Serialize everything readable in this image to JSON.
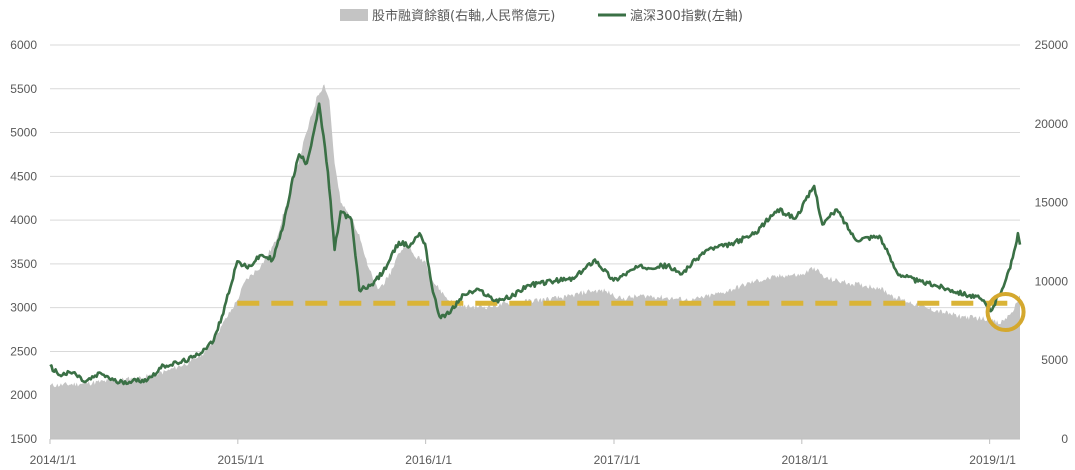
{
  "chart_data": {
    "type": "area+line",
    "legend": {
      "placement": "top",
      "items": [
        {
          "key": "margin",
          "label": "股市融資餘額(右軸,人民幣億元)",
          "color": "#c4c4c4",
          "marker": "rect"
        },
        {
          "key": "index",
          "label": "滬深300指數(左軸)",
          "color": "#3a7045",
          "marker": "line"
        }
      ]
    },
    "x_axis": {
      "min": "2014-01-01",
      "max": "2019-03-01",
      "tick_labels": [
        "2014/1/1",
        "2015/1/1",
        "2016/1/1",
        "2017/1/1",
        "2018/1/1",
        "2019/1/1"
      ],
      "tick_dates": [
        "2014-01-01",
        "2015-01-01",
        "2016-01-01",
        "2017-01-01",
        "2018-01-01",
        "2019-01-01"
      ]
    },
    "y_left": {
      "min": 1500,
      "max": 6000,
      "step": 500,
      "tick_labels": [
        "1500",
        "2000",
        "2500",
        "3000",
        "3500",
        "4000",
        "4500",
        "5000",
        "5500",
        "6000"
      ]
    },
    "y_right": {
      "min": 0,
      "max": 25000,
      "step": 5000,
      "tick_labels": [
        "0",
        "5000",
        "10000",
        "15000",
        "20000",
        "25000"
      ]
    },
    "grid": {
      "horizontal": true,
      "vertical": false,
      "color": "#d9d9d9"
    },
    "reference_line": {
      "axis": "left",
      "value": 3050,
      "from": "2014-12-31",
      "to": "2019-02-05",
      "color": "#dab437",
      "style": "dashed"
    },
    "highlight_circle": {
      "date": "2019-02-01",
      "value_left": 2950,
      "color": "#d4a82e"
    },
    "series": [
      {
        "key": "margin",
        "axis": "right",
        "render": "area",
        "color": "#c4c4c4",
        "points": [
          [
            "2014-01-01",
            3400
          ],
          [
            "2014-03-01",
            3500
          ],
          [
            "2014-05-01",
            3700
          ],
          [
            "2014-07-01",
            3900
          ],
          [
            "2014-08-15",
            4300
          ],
          [
            "2014-10-01",
            4900
          ],
          [
            "2014-11-01",
            5600
          ],
          [
            "2014-12-01",
            7200
          ],
          [
            "2014-12-31",
            8800
          ],
          [
            "2015-01-15",
            10000
          ],
          [
            "2015-02-15",
            11000
          ],
          [
            "2015-03-15",
            12500
          ],
          [
            "2015-04-15",
            16000
          ],
          [
            "2015-05-15",
            19500
          ],
          [
            "2015-06-05",
            21800
          ],
          [
            "2015-06-18",
            22500
          ],
          [
            "2015-06-28",
            21500
          ],
          [
            "2015-07-08",
            17500
          ],
          [
            "2015-07-20",
            15000
          ],
          [
            "2015-08-10",
            14000
          ],
          [
            "2015-08-25",
            13000
          ],
          [
            "2015-09-10",
            11000
          ],
          [
            "2015-09-30",
            9500
          ],
          [
            "2015-10-20",
            10200
          ],
          [
            "2015-11-10",
            11800
          ],
          [
            "2015-11-25",
            12400
          ],
          [
            "2015-12-10",
            11600
          ],
          [
            "2015-12-31",
            11300
          ],
          [
            "2016-01-15",
            10000
          ],
          [
            "2016-02-15",
            8800
          ],
          [
            "2016-03-15",
            8400
          ],
          [
            "2016-05-01",
            8400
          ],
          [
            "2016-07-01",
            8700
          ],
          [
            "2016-09-01",
            8900
          ],
          [
            "2016-10-01",
            9000
          ],
          [
            "2016-11-15",
            9400
          ],
          [
            "2016-12-15",
            9400
          ],
          [
            "2017-01-15",
            8900
          ],
          [
            "2017-03-01",
            9100
          ],
          [
            "2017-05-01",
            8900
          ],
          [
            "2017-06-01",
            8800
          ],
          [
            "2017-08-01",
            9300
          ],
          [
            "2017-10-01",
            10000
          ],
          [
            "2017-12-01",
            10400
          ],
          [
            "2018-01-01",
            10400
          ],
          [
            "2018-01-25",
            10900
          ],
          [
            "2018-02-15",
            10200
          ],
          [
            "2018-04-01",
            9900
          ],
          [
            "2018-06-01",
            9600
          ],
          [
            "2018-07-01",
            9000
          ],
          [
            "2018-09-01",
            8300
          ],
          [
            "2018-11-01",
            7800
          ],
          [
            "2018-12-31",
            7600
          ],
          [
            "2019-01-20",
            7300
          ],
          [
            "2019-02-10",
            7900
          ],
          [
            "2019-02-25",
            8700
          ],
          [
            "2019-03-01",
            9100
          ]
        ]
      },
      {
        "key": "index",
        "axis": "left",
        "render": "line",
        "color": "#3a7045",
        "points": [
          [
            "2014-01-01",
            2330
          ],
          [
            "2014-01-20",
            2230
          ],
          [
            "2014-02-15",
            2260
          ],
          [
            "2014-03-10",
            2150
          ],
          [
            "2014-04-10",
            2250
          ],
          [
            "2014-05-10",
            2150
          ],
          [
            "2014-06-10",
            2160
          ],
          [
            "2014-07-10",
            2180
          ],
          [
            "2014-08-10",
            2340
          ],
          [
            "2014-09-10",
            2370
          ],
          [
            "2014-10-10",
            2440
          ],
          [
            "2014-11-15",
            2620
          ],
          [
            "2014-12-01",
            2900
          ],
          [
            "2014-12-31",
            3530
          ],
          [
            "2015-01-20",
            3450
          ],
          [
            "2015-02-15",
            3600
          ],
          [
            "2015-03-10",
            3550
          ],
          [
            "2015-03-31",
            3950
          ],
          [
            "2015-04-15",
            4400
          ],
          [
            "2015-04-30",
            4750
          ],
          [
            "2015-05-15",
            4650
          ],
          [
            "2015-06-01",
            5100
          ],
          [
            "2015-06-08",
            5330
          ],
          [
            "2015-06-25",
            4550
          ],
          [
            "2015-07-08",
            3660
          ],
          [
            "2015-07-20",
            4100
          ],
          [
            "2015-08-10",
            4000
          ],
          [
            "2015-08-25",
            3200
          ],
          [
            "2015-09-15",
            3250
          ],
          [
            "2015-10-10",
            3400
          ],
          [
            "2015-11-10",
            3750
          ],
          [
            "2015-12-01",
            3700
          ],
          [
            "2015-12-20",
            3850
          ],
          [
            "2015-12-31",
            3730
          ],
          [
            "2016-01-15",
            3180
          ],
          [
            "2016-01-28",
            2900
          ],
          [
            "2016-02-15",
            2930
          ],
          [
            "2016-03-15",
            3150
          ],
          [
            "2016-04-15",
            3200
          ],
          [
            "2016-05-15",
            3080
          ],
          [
            "2016-06-15",
            3120
          ],
          [
            "2016-07-15",
            3250
          ],
          [
            "2016-09-01",
            3300
          ],
          [
            "2016-10-15",
            3330
          ],
          [
            "2016-11-25",
            3550
          ],
          [
            "2016-12-31",
            3310
          ],
          [
            "2017-02-15",
            3460
          ],
          [
            "2017-04-15",
            3480
          ],
          [
            "2017-05-10",
            3380
          ],
          [
            "2017-06-30",
            3660
          ],
          [
            "2017-08-15",
            3720
          ],
          [
            "2017-09-30",
            3840
          ],
          [
            "2017-11-15",
            4120
          ],
          [
            "2017-12-20",
            4020
          ],
          [
            "2018-01-25",
            4390
          ],
          [
            "2018-02-10",
            3950
          ],
          [
            "2018-03-10",
            4120
          ],
          [
            "2018-04-15",
            3780
          ],
          [
            "2018-06-01",
            3820
          ],
          [
            "2018-07-05",
            3400
          ],
          [
            "2018-08-15",
            3300
          ],
          [
            "2018-09-15",
            3260
          ],
          [
            "2018-10-20",
            3200
          ],
          [
            "2018-12-15",
            3100
          ],
          [
            "2019-01-03",
            2960
          ],
          [
            "2019-01-20",
            3150
          ],
          [
            "2019-02-10",
            3450
          ],
          [
            "2019-02-25",
            3850
          ],
          [
            "2019-03-01",
            3720
          ]
        ]
      }
    ]
  }
}
